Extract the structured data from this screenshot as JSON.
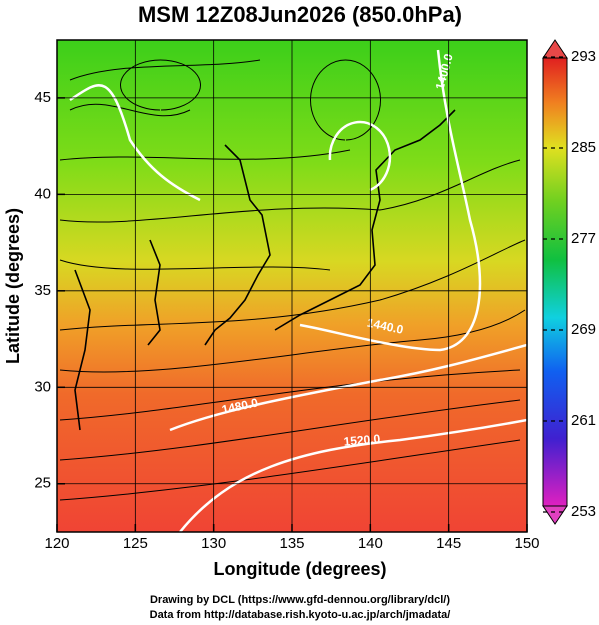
{
  "map": {
    "title": "MSM 12Z08Jun2026 (850.0hPa)",
    "xlabel": "Longitude (degrees)",
    "ylabel": "Latitude  (degrees)",
    "xlim": [
      120,
      150
    ],
    "xticks": [
      120,
      125,
      130,
      135,
      140,
      145,
      150
    ],
    "ylim": [
      22.5,
      48
    ],
    "yticks": [
      25,
      30,
      35,
      40,
      45
    ],
    "colorbar": {
      "lim": [
        253,
        293
      ],
      "ticks": [
        253,
        261,
        269,
        277,
        285,
        293
      ]
    },
    "contour_labels": [
      "1400.0",
      "1440.0",
      "1480.0",
      "1520.0"
    ],
    "footer": [
      "Drawing by DCL (https://www.gfd-dennou.org/library/dcl/)",
      "Data from http://database.rish.kyoto-u.ac.jp/arch/jmadata/"
    ]
  }
}
